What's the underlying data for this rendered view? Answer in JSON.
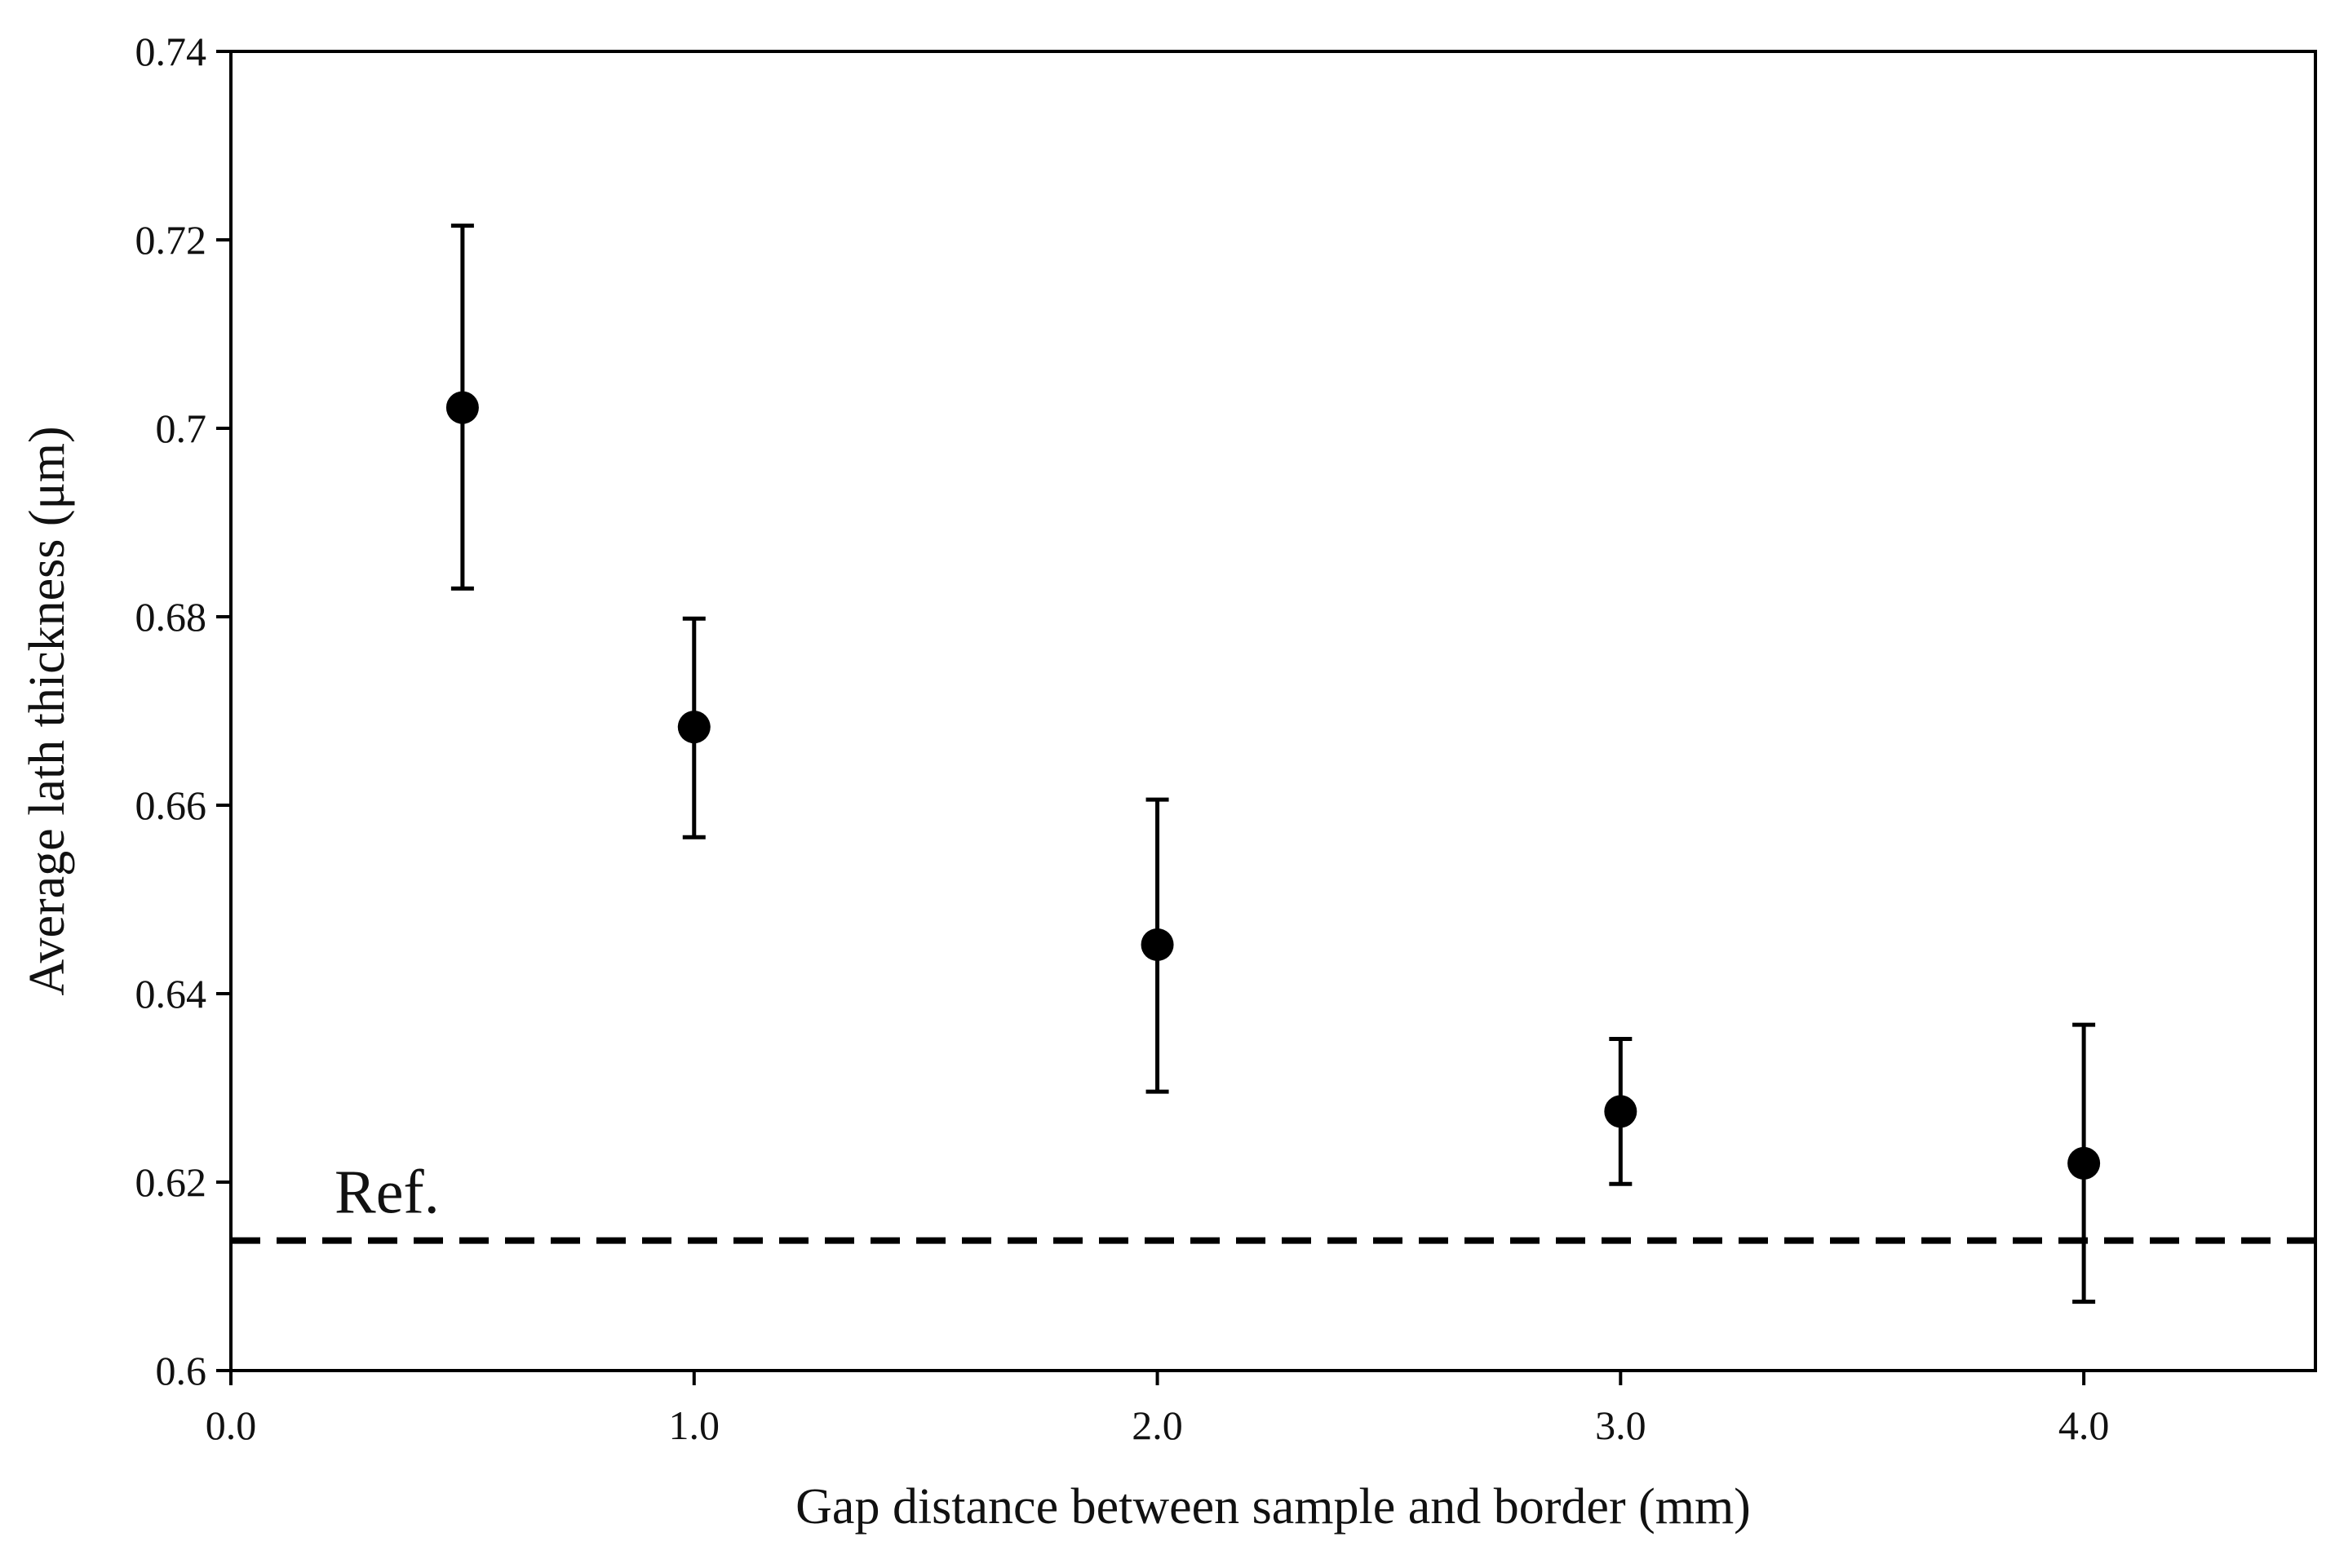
{
  "chart_data": {
    "type": "scatter",
    "title": "",
    "xlabel": "Gap distance between sample and border (mm)",
    "ylabel": "Average lath thickness (μm)",
    "xlim": [
      0,
      4.5
    ],
    "ylim": [
      0.6,
      0.74
    ],
    "xticks": [
      0,
      1,
      2,
      3,
      4
    ],
    "xtick_labels": [
      "0.0",
      "1.0",
      "2.0",
      "3.0",
      "4.0"
    ],
    "yticks": [
      0.6,
      0.62,
      0.64,
      0.66,
      0.68,
      0.7,
      0.72,
      0.74
    ],
    "ytick_labels": [
      "0.6",
      "0.62",
      "0.64",
      "0.66",
      "0.68",
      "0.7",
      "0.72",
      "0.74"
    ],
    "grid": false,
    "legend": "none",
    "series": [
      {
        "x": [
          0.5,
          1.0,
          2.0,
          3.0,
          4.0
        ],
        "y": [
          0.7022,
          0.6683,
          0.6452,
          0.6275,
          0.622
        ],
        "y_err_low": [
          0.683,
          0.6566,
          0.6296,
          0.6198,
          0.6073
        ],
        "y_err_high": [
          0.7215,
          0.6798,
          0.6606,
          0.6352,
          0.6367
        ],
        "color": "#000000",
        "marker": "circle"
      }
    ],
    "reference_line": {
      "label": "Ref.",
      "y": 0.6138,
      "style": "dashed",
      "color": "#000000"
    }
  }
}
